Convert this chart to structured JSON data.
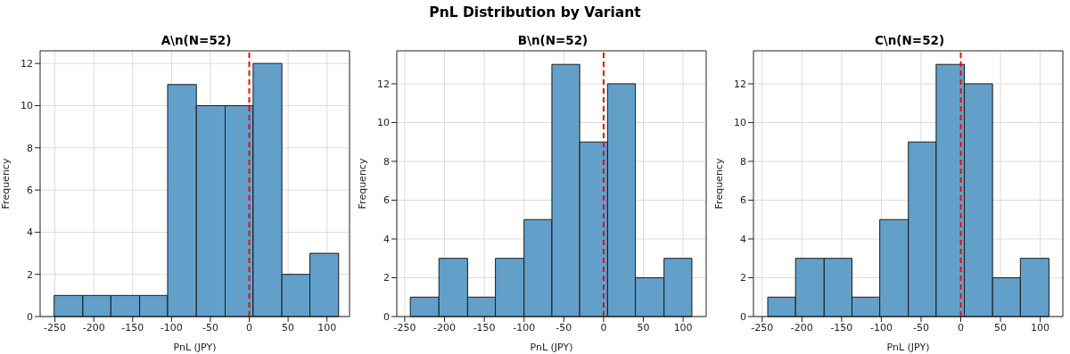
{
  "chart_data": [
    {
      "type": "histogram",
      "title": "A\\n(N=52)",
      "annotations": [
        "PnL Distribution by Variant"
      ],
      "xlabel": "PnL (JPY)",
      "ylabel": "Frequency",
      "bins": [
        -251,
        -214,
        -178,
        -141,
        -105,
        -68,
        -31,
        5,
        42,
        78,
        115
      ],
      "values": [
        1,
        1,
        1,
        1,
        11,
        10,
        10,
        12,
        2,
        3
      ],
      "color": "#62a0ca",
      "xlim": [
        -269,
        129
      ],
      "xticks": [
        -250,
        -200,
        -150,
        -100,
        -50,
        0,
        50,
        100
      ],
      "ylim": [
        0,
        12.6
      ],
      "yticks": [
        0,
        2,
        4,
        6,
        8,
        10,
        12
      ],
      "grid": true,
      "ref_lines": [
        {
          "axis": "x",
          "value": 0,
          "color": "#e01010",
          "line_style": "dashed"
        }
      ]
    },
    {
      "type": "histogram",
      "title": "B\\n(N=52)",
      "xlabel": "PnL (JPY)",
      "ylabel": "Frequency",
      "bins": [
        -243,
        -207,
        -171,
        -136,
        -100,
        -65,
        -30,
        5,
        40,
        76,
        111
      ],
      "values": [
        1,
        3,
        1,
        3,
        5,
        13,
        9,
        12,
        2,
        3
      ],
      "color": "#62a0ca",
      "xlim": [
        -260,
        129
      ],
      "xticks": [
        -250,
        -200,
        -150,
        -100,
        -50,
        0,
        50,
        100
      ],
      "ylim": [
        0,
        13.7
      ],
      "yticks": [
        0,
        2,
        4,
        6,
        8,
        10,
        12
      ],
      "grid": true,
      "ref_lines": [
        {
          "axis": "x",
          "value": 0,
          "color": "#e01010",
          "line_style": "dashed"
        }
      ]
    },
    {
      "type": "histogram",
      "title": "C\\n(N=52)",
      "xlabel": "PnL (JPY)",
      "ylabel": "Frequency",
      "bins": [
        -243,
        -208,
        -172,
        -137,
        -102,
        -66,
        -31,
        4.5,
        40,
        75,
        111
      ],
      "values": [
        1,
        3,
        3,
        1,
        5,
        9,
        13,
        12,
        2,
        3
      ],
      "color": "#62a0ca",
      "xlim": [
        -261,
        128.5
      ],
      "xticks": [
        -250,
        -200,
        -150,
        -100,
        -50,
        0,
        50,
        100
      ],
      "ylim": [
        0,
        13.7
      ],
      "yticks": [
        0,
        2,
        4,
        6,
        8,
        10,
        12
      ],
      "grid": true,
      "ref_lines": [
        {
          "axis": "x",
          "value": 0,
          "color": "#e01010",
          "line_style": "dashed"
        }
      ]
    }
  ]
}
